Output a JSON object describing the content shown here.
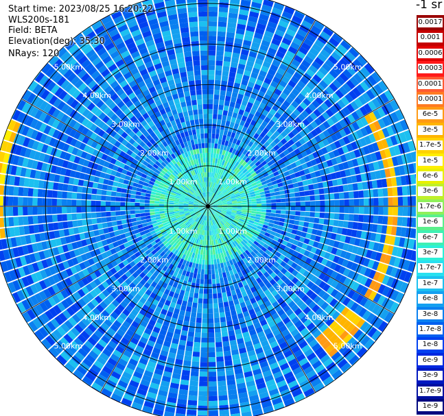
{
  "header": {
    "start_time": "Start time: 2023/08/25 16:20:22",
    "instrument": "WLS200s-181",
    "field": "Field: BETA",
    "elevation": "Elevation(deg): 35.30",
    "nrays": "NRays: 120"
  },
  "colorbar": {
    "title": "-1 sr",
    "levels": [
      {
        "label": "0.0017",
        "color": "#9a0000"
      },
      {
        "label": "0.001",
        "color": "#c40000"
      },
      {
        "label": "0.0006",
        "color": "#e00000"
      },
      {
        "label": "0.0003",
        "color": "#ff1a1a"
      },
      {
        "label": "0.00017",
        "color": "#ff5a32"
      },
      {
        "label": "0.0001",
        "color": "#ff7a22"
      },
      {
        "label": "6e-5",
        "color": "#ff9a14"
      },
      {
        "label": "3e-5",
        "color": "#ffb400"
      },
      {
        "label": "1.7e-5",
        "color": "#ffd200"
      },
      {
        "label": "1e-5",
        "color": "#ffee00"
      },
      {
        "label": "6e-6",
        "color": "#e8f000"
      },
      {
        "label": "3e-6",
        "color": "#bff02a"
      },
      {
        "label": "1.7e-6",
        "color": "#8ff05a"
      },
      {
        "label": "1e-6",
        "color": "#5af08c"
      },
      {
        "label": "6e-7",
        "color": "#3ef0b4"
      },
      {
        "label": "3e-7",
        "color": "#2cf0d8"
      },
      {
        "label": "1.7e-7",
        "color": "#28e0f0"
      },
      {
        "label": "1e-7",
        "color": "#1cc0f0"
      },
      {
        "label": "6e-8",
        "color": "#14a0f0"
      },
      {
        "label": "3e-8",
        "color": "#0a80f0"
      },
      {
        "label": "1.7e-8",
        "color": "#0060f0"
      },
      {
        "label": "1e-8",
        "color": "#0040f0"
      },
      {
        "label": "6e-9",
        "color": "#0028e0"
      },
      {
        "label": "3e-9",
        "color": "#0018c0"
      },
      {
        "label": "1.7e-9",
        "color": "#0010a0"
      },
      {
        "label": "1e-9",
        "color": "#000880"
      }
    ]
  },
  "chart_data": {
    "type": "heatmap",
    "projection": "polar (PPI scan)",
    "field": "BETA",
    "nrays": 120,
    "range_unit": "km",
    "range_max_km": 5.3,
    "range_rings_km": [
      1,
      2,
      3,
      4,
      5
    ],
    "ring_labels": [
      "1.00km",
      "2.00km",
      "3.00km",
      "4.00km",
      "5.00km"
    ],
    "azimuth_spokes_deg": [
      0,
      30,
      60,
      90,
      120,
      150,
      180,
      210,
      240,
      270,
      300,
      330
    ],
    "scale": "log",
    "value_range": [
      1e-09,
      0.0017
    ],
    "dominant_values": [
      {
        "range_km": [
          0.0,
          1.5
        ],
        "beta": 3e-07
      },
      {
        "range_km": [
          1.5,
          5.3
        ],
        "beta": 3e-08
      }
    ],
    "features": [
      {
        "name": "high-backscatter arc east",
        "azimuth_deg": [
          60,
          120
        ],
        "range_km": [
          4.4,
          4.7
        ],
        "beta": 3e-05
      },
      {
        "name": "high-backscatter cluster south-east",
        "azimuth_deg": [
          125,
          140
        ],
        "range_km": [
          4.2,
          4.8
        ],
        "beta": 3e-05
      },
      {
        "name": "high-backscatter edge west",
        "azimuth_deg": [
          260,
          295
        ],
        "range_km": [
          5.0,
          5.3
        ],
        "beta": 1.7e-05
      }
    ]
  }
}
